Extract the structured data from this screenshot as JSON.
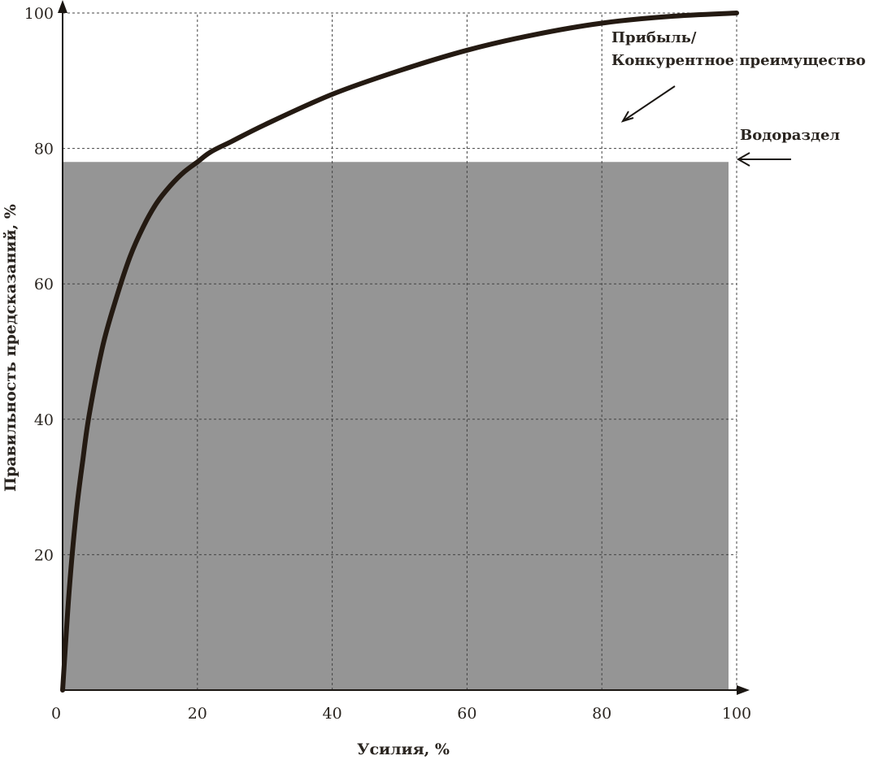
{
  "chart_data": {
    "type": "area",
    "xlabel": "Усилия, %",
    "ylabel": "Правильность предсказаний, %",
    "xlim": [
      0,
      100
    ],
    "ylim": [
      0,
      100
    ],
    "x_ticks": [
      0,
      20,
      40,
      60,
      80,
      100
    ],
    "y_ticks": [
      20,
      40,
      60,
      80,
      100
    ],
    "grid": true,
    "colors": {
      "shaded_region": "#959595",
      "curve": "#241a12",
      "axis": "#1a1612"
    },
    "shaded_region": {
      "x": [
        0,
        100
      ],
      "y": [
        0,
        78
      ]
    },
    "series": [
      {
        "x": [
          0,
          1,
          2,
          3,
          4,
          6,
          8,
          10,
          12,
          14,
          16,
          18,
          20,
          22,
          25,
          30,
          40,
          50,
          60,
          70,
          80,
          90,
          100
        ],
        "values": [
          0,
          15,
          26,
          34,
          41,
          51,
          58,
          64,
          68.5,
          72,
          74.5,
          76.5,
          78,
          79.5,
          81,
          83.5,
          88,
          91.5,
          94.5,
          96.8,
          98.5,
          99.5,
          100
        ]
      }
    ],
    "annotations": [
      {
        "text_lines": [
          "Прибыль/",
          "Конкурентное преимущество"
        ],
        "points_to": "curve"
      },
      {
        "text": "Водораздел",
        "points_to": "top of shaded region"
      }
    ]
  }
}
